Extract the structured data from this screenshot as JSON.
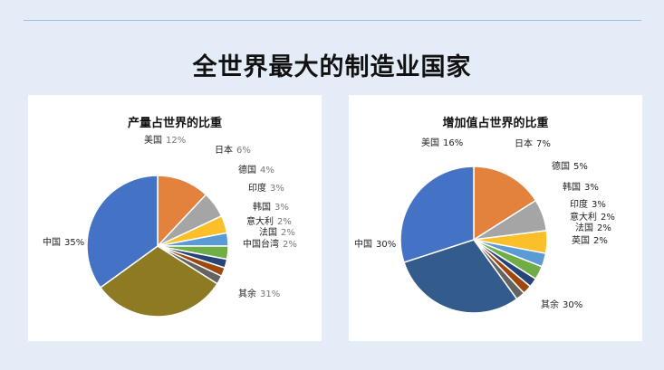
{
  "slide": {
    "title": "全世界最大的制造业国家"
  },
  "chart_data": [
    {
      "type": "pie",
      "title": "产量占世界的比重",
      "slices": [
        {
          "label": "美国",
          "value_label": "12%",
          "value": 12,
          "color": "#e2823d"
        },
        {
          "label": "日本",
          "value_label": "6%",
          "value": 6,
          "color": "#a5a5a5"
        },
        {
          "label": "德国",
          "value_label": "4%",
          "value": 4,
          "color": "#fbbf2a"
        },
        {
          "label": "印度",
          "value_label": "3%",
          "value": 3,
          "color": "#5b9bd5"
        },
        {
          "label": "韩国",
          "value_label": "3%",
          "value": 3,
          "color": "#70ad47"
        },
        {
          "label": "意大利",
          "value_label": "2%",
          "value": 2,
          "color": "#264478"
        },
        {
          "label": "法国",
          "value_label": "2%",
          "value": 2,
          "color": "#9e480e"
        },
        {
          "label": "中国台湾",
          "value_label": "2%",
          "value": 2,
          "color": "#636363"
        },
        {
          "label": "其余",
          "value_label": "31%",
          "value": 31,
          "color": "#8d7a22"
        },
        {
          "label": "中国",
          "value_label": "35%",
          "value": 35,
          "color": "#4472c4"
        }
      ]
    },
    {
      "type": "pie",
      "title": "增加值占世界的比重",
      "slices": [
        {
          "label": "美国",
          "value_label": "16%",
          "value": 16,
          "color": "#e2823d"
        },
        {
          "label": "日本",
          "value_label": "7%",
          "value": 7,
          "color": "#a5a5a5"
        },
        {
          "label": "德国",
          "value_label": "5%",
          "value": 5,
          "color": "#fbbf2a"
        },
        {
          "label": "韩国",
          "value_label": "3%",
          "value": 3,
          "color": "#5b9bd5"
        },
        {
          "label": "印度",
          "value_label": "3%",
          "value": 3,
          "color": "#70ad47"
        },
        {
          "label": "意大利",
          "value_label": "2%",
          "value": 2,
          "color": "#264478"
        },
        {
          "label": "法国",
          "value_label": "2%",
          "value": 2,
          "color": "#9e480e"
        },
        {
          "label": "英国",
          "value_label": "2%",
          "value": 2,
          "color": "#636363"
        },
        {
          "label": "其余",
          "value_label": "30%",
          "value": 30,
          "color": "#335b8c"
        },
        {
          "label": "中国",
          "value_label": "30%",
          "value": 30,
          "color": "#4472c4"
        }
      ]
    }
  ]
}
